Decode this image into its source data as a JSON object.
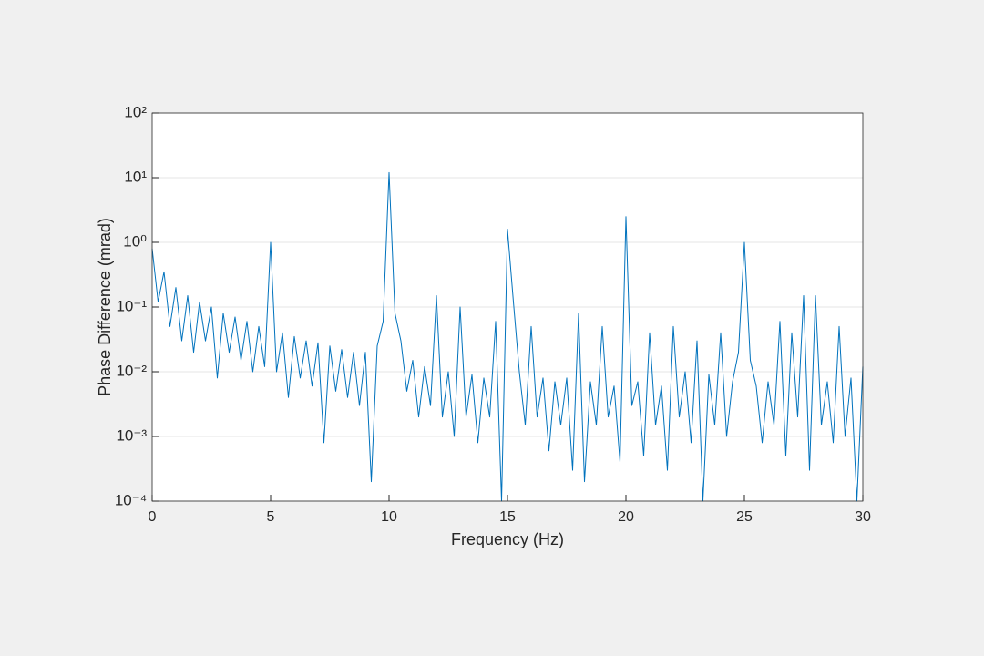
{
  "chart_data": {
    "type": "line",
    "xlabel": "Frequency (Hz)",
    "ylabel": "Phase Difference (mrad)",
    "log_y": true,
    "grid": true,
    "color": "#0072bd",
    "xlim": [
      0,
      30
    ],
    "xticks": [
      0,
      5,
      10,
      15,
      20,
      25,
      30
    ],
    "ylim": [
      0.0001,
      100
    ],
    "yticks": [
      {
        "value": 0.0001,
        "label": "10⁻⁴"
      },
      {
        "value": 0.001,
        "label": "10⁻³"
      },
      {
        "value": 0.01,
        "label": "10⁻²"
      },
      {
        "value": 0.1,
        "label": "10⁻¹"
      },
      {
        "value": 1,
        "label": "10⁰"
      },
      {
        "value": 10,
        "label": "10¹"
      },
      {
        "value": 100,
        "label": "10²"
      }
    ],
    "x": [
      0,
      0.25,
      0.5,
      0.75,
      1,
      1.25,
      1.5,
      1.75,
      2,
      2.25,
      2.5,
      2.75,
      3,
      3.25,
      3.5,
      3.75,
      4,
      4.25,
      4.5,
      4.75,
      5,
      5.25,
      5.5,
      5.75,
      6,
      6.25,
      6.5,
      6.75,
      7,
      7.25,
      7.5,
      7.75,
      8,
      8.25,
      8.5,
      8.75,
      9,
      9.25,
      9.5,
      9.75,
      10,
      10.25,
      10.5,
      10.75,
      11,
      11.25,
      11.5,
      11.75,
      12,
      12.25,
      12.5,
      12.75,
      13,
      13.25,
      13.5,
      13.75,
      14,
      14.25,
      14.5,
      14.75,
      15,
      15.25,
      15.5,
      15.75,
      16,
      16.25,
      16.5,
      16.75,
      17,
      17.25,
      17.5,
      17.75,
      18,
      18.25,
      18.5,
      18.75,
      19,
      19.25,
      19.5,
      19.75,
      20,
      20.25,
      20.5,
      20.75,
      21,
      21.25,
      21.5,
      21.75,
      22,
      22.25,
      22.5,
      22.75,
      23,
      23.25,
      23.5,
      23.75,
      24,
      24.25,
      24.5,
      24.75,
      25,
      25.25,
      25.5,
      25.75,
      26,
      26.25,
      26.5,
      26.75,
      27,
      27.25,
      27.5,
      27.75,
      28,
      28.25,
      28.5,
      28.75,
      29,
      29.25,
      29.5,
      29.75,
      30
    ],
    "values": [
      0.8,
      0.12,
      0.35,
      0.05,
      0.2,
      0.03,
      0.15,
      0.02,
      0.12,
      0.03,
      0.1,
      0.008,
      0.08,
      0.02,
      0.07,
      0.015,
      0.06,
      0.01,
      0.05,
      0.012,
      1,
      0.01,
      0.04,
      0.004,
      0.035,
      0.008,
      0.03,
      0.006,
      0.028,
      0.0008,
      0.025,
      0.005,
      0.022,
      0.004,
      0.02,
      0.003,
      0.02,
      0.0002,
      0.025,
      0.06,
      12,
      0.08,
      0.03,
      0.005,
      0.015,
      0.002,
      0.012,
      0.003,
      0.15,
      0.002,
      0.01,
      0.001,
      0.1,
      0.002,
      0.009,
      0.0008,
      0.008,
      0.002,
      0.06,
      0.0001,
      1.6,
      0.12,
      0.01,
      0.0015,
      0.05,
      0.002,
      0.008,
      0.0006,
      0.007,
      0.0015,
      0.008,
      0.0003,
      0.08,
      0.0002,
      0.007,
      0.0015,
      0.05,
      0.002,
      0.006,
      0.0004,
      2.5,
      0.003,
      0.007,
      0.0005,
      0.04,
      0.0015,
      0.006,
      0.0003,
      0.05,
      0.002,
      0.01,
      0.0008,
      0.03,
      0.0001,
      0.009,
      0.0015,
      0.04,
      0.001,
      0.007,
      0.02,
      1,
      0.015,
      0.006,
      0.0008,
      0.007,
      0.0015,
      0.06,
      0.0005,
      0.04,
      0.002,
      0.15,
      0.0003,
      0.15,
      0.0015,
      0.007,
      0.0008,
      0.05,
      0.001,
      0.008,
      0.0001,
      0.012
    ]
  }
}
